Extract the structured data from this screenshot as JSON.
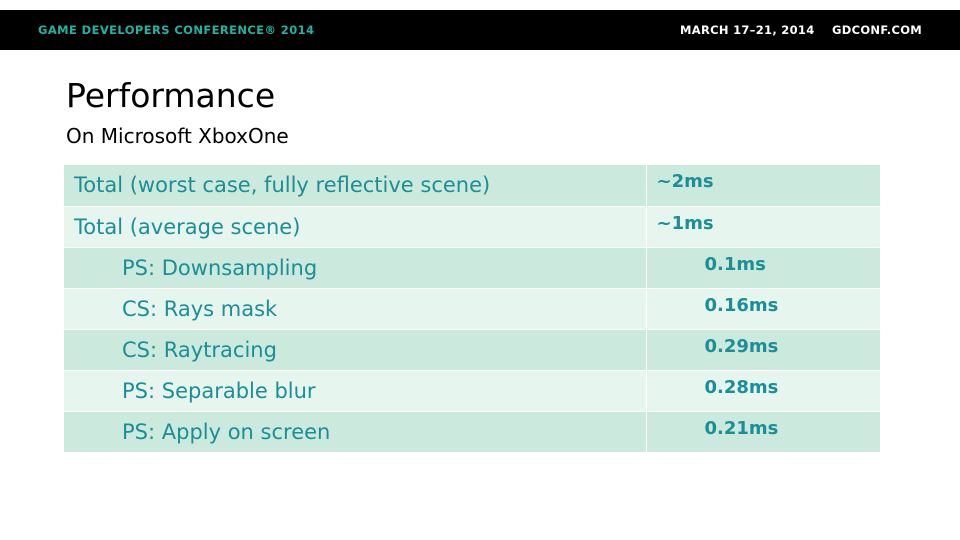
{
  "header": {
    "conference": "GAME DEVELOPERS CONFERENCE® 2014",
    "dates": "MARCH 17–21, 2014",
    "url": "GDCONF.COM"
  },
  "slide": {
    "title": "Performance",
    "subtitle": "On Microsoft XboxOne"
  },
  "table": {
    "rows": [
      {
        "label": "Total (worst case, fully reflective scene)",
        "value": "~2ms"
      },
      {
        "label": "Total (average scene)",
        "value": "~1ms"
      },
      {
        "label": "PS: Downsampling",
        "value": "0.1ms"
      },
      {
        "label": "CS: Rays mask",
        "value": "0.16ms"
      },
      {
        "label": "CS: Raytracing",
        "value": "0.29ms"
      },
      {
        "label": "PS: Separable blur",
        "value": "0.28ms"
      },
      {
        "label": "PS: Apply on screen",
        "value": "0.21ms"
      }
    ]
  },
  "colors": {
    "header_bg": "#000000",
    "brand_accent": "#1fb3a3",
    "table_text": "#1b8f95",
    "row_dark": "#cce9de",
    "row_light": "#e7f5ef"
  }
}
